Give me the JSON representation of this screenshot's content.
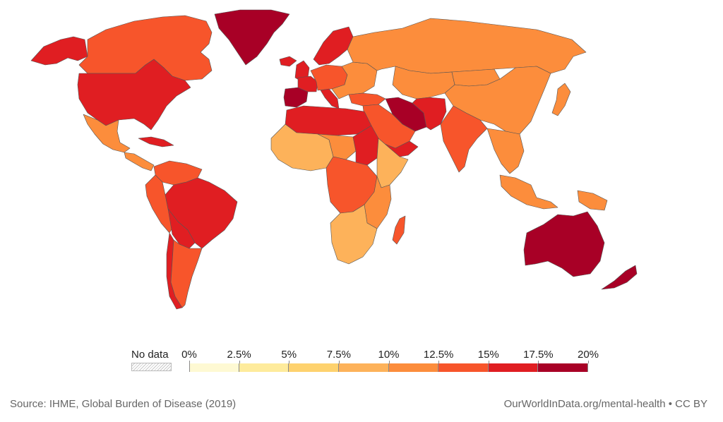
{
  "legend": {
    "no_data_label": "No data",
    "no_data_pattern": "hatched",
    "ticks": [
      "0%",
      "2.5%",
      "5%",
      "7.5%",
      "10%",
      "12.5%",
      "15%",
      "17.5%",
      "20%"
    ],
    "bins": [
      {
        "from": 0,
        "to": 2.5,
        "color": "#fef9d3"
      },
      {
        "from": 2.5,
        "to": 5,
        "color": "#feeb9c"
      },
      {
        "from": 5,
        "to": 7.5,
        "color": "#fed26e"
      },
      {
        "from": 7.5,
        "to": 10,
        "color": "#fdb25a"
      },
      {
        "from": 10,
        "to": 12.5,
        "color": "#fc8d3c"
      },
      {
        "from": 12.5,
        "to": 15,
        "color": "#f7552b"
      },
      {
        "from": 15,
        "to": 17.5,
        "color": "#e01e22"
      },
      {
        "from": 17.5,
        "to": 20,
        "color": "#a80026"
      }
    ]
  },
  "footer": {
    "source": "Source: IHME, Global Burden of Disease (2019)",
    "credit": "OurWorldInData.org/mental-health • CC BY"
  },
  "map_regions": [
    {
      "name": "canada",
      "bin": 5
    },
    {
      "name": "alaska",
      "bin": 6
    },
    {
      "name": "usa",
      "bin": 6
    },
    {
      "name": "mexico",
      "bin": 4
    },
    {
      "name": "central-america",
      "bin": 4
    },
    {
      "name": "cuba",
      "bin": 6
    },
    {
      "name": "greenland",
      "bin": 7
    },
    {
      "name": "iceland",
      "bin": 6
    },
    {
      "name": "venezuela-colombia",
      "bin": 5
    },
    {
      "name": "peru-ecuador",
      "bin": 5
    },
    {
      "name": "brazil",
      "bin": 6
    },
    {
      "name": "bolivia-paraguay",
      "bin": 6
    },
    {
      "name": "argentina",
      "bin": 5
    },
    {
      "name": "chile",
      "bin": 6
    },
    {
      "name": "uk-ireland",
      "bin": 6
    },
    {
      "name": "iberia",
      "bin": 7
    },
    {
      "name": "france",
      "bin": 6
    },
    {
      "name": "central-europe",
      "bin": 5
    },
    {
      "name": "eastern-europe",
      "bin": 4
    },
    {
      "name": "scandinavia",
      "bin": 6
    },
    {
      "name": "italy",
      "bin": 6
    },
    {
      "name": "russia",
      "bin": 4
    },
    {
      "name": "central-asia",
      "bin": 4
    },
    {
      "name": "mongolia",
      "bin": 4
    },
    {
      "name": "china",
      "bin": 4
    },
    {
      "name": "japan",
      "bin": 4
    },
    {
      "name": "iran",
      "bin": 7
    },
    {
      "name": "afghanistan-pakistan",
      "bin": 6
    },
    {
      "name": "turkey",
      "bin": 5
    },
    {
      "name": "arabia",
      "bin": 5
    },
    {
      "name": "yemen",
      "bin": 6
    },
    {
      "name": "india",
      "bin": 5
    },
    {
      "name": "southeast-asia",
      "bin": 4
    },
    {
      "name": "indonesia",
      "bin": 4
    },
    {
      "name": "new-guinea",
      "bin": 4
    },
    {
      "name": "north-africa",
      "bin": 6
    },
    {
      "name": "west-africa",
      "bin": 3
    },
    {
      "name": "sahel",
      "bin": 4
    },
    {
      "name": "sudan",
      "bin": 6
    },
    {
      "name": "horn-of-africa",
      "bin": 3
    },
    {
      "name": "central-africa",
      "bin": 5
    },
    {
      "name": "east-africa",
      "bin": 4
    },
    {
      "name": "southern-africa",
      "bin": 3
    },
    {
      "name": "madagascar",
      "bin": 5
    },
    {
      "name": "australia",
      "bin": 7
    },
    {
      "name": "new-zealand",
      "bin": 7
    }
  ]
}
